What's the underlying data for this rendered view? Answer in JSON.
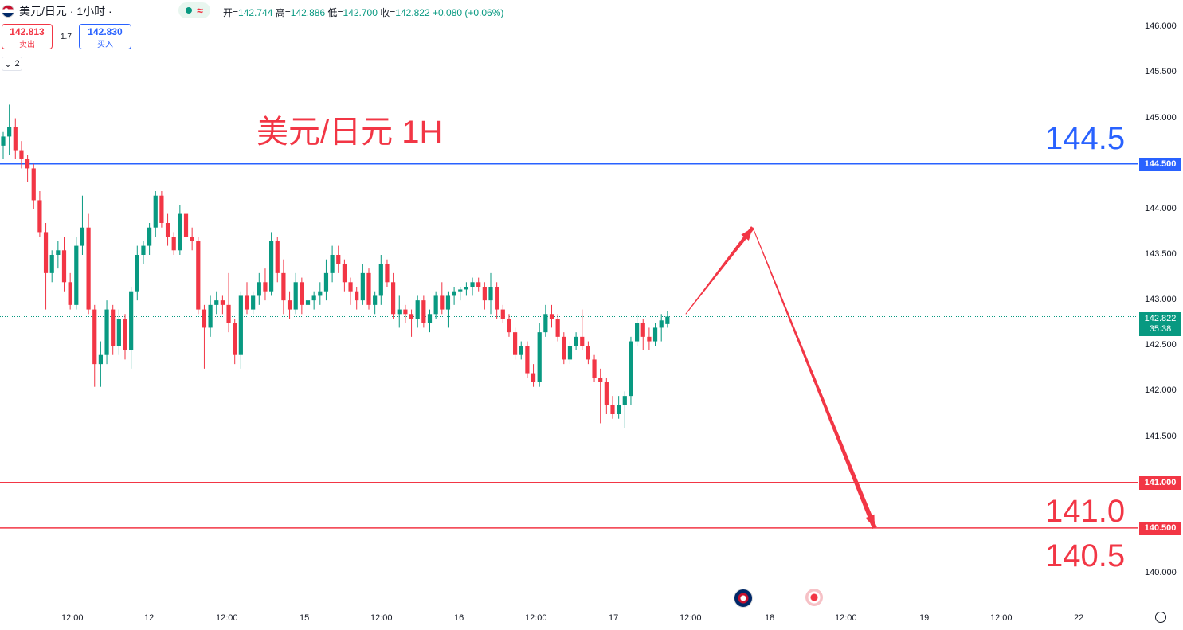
{
  "header": {
    "symbol": "美元/日元 · 1小时 ·",
    "ohlc": {
      "open_label": "开=",
      "open": "142.744",
      "high_label": "高=",
      "high": "142.886",
      "low_label": "低=",
      "low": "142.700",
      "close_label": "收=",
      "close": "142.822",
      "change": "+0.080 (+0.06%)"
    }
  },
  "trade": {
    "sell_price": "142.813",
    "sell_label": "卖出",
    "spread": "1.7",
    "buy_price": "142.830",
    "buy_label": "买入",
    "collapse_count": "2"
  },
  "annotations": {
    "title": "美元/日元 1H",
    "level_top": "144.5",
    "level_mid": "141.0",
    "level_low": "140.5"
  },
  "current_price": {
    "price": "142.822",
    "countdown": "35:38"
  },
  "colors": {
    "up": "#089981",
    "down": "#f23645",
    "blue_line": "#2962ff",
    "red_line": "#f23645"
  },
  "chart_data": {
    "type": "candlestick",
    "y_axis": {
      "range": [
        139.65,
        146.3
      ],
      "ticks": [
        "146.000",
        "145.500",
        "145.000",
        "144.500",
        "144.000",
        "143.500",
        "143.000",
        "142.500",
        "142.000",
        "141.500",
        "141.000",
        "140.500",
        "140.000"
      ]
    },
    "x_axis": {
      "ticks": [
        "12:00",
        "12",
        "12:00",
        "15",
        "12:00",
        "16",
        "12:00",
        "17",
        "12:00",
        "18",
        "12:00",
        "19",
        "12:00",
        "22"
      ]
    },
    "horizontal_levels": [
      {
        "value": 144.5,
        "label": "144.500",
        "color": "#2962ff"
      },
      {
        "value": 141.0,
        "label": "141.000",
        "color": "#f23645"
      },
      {
        "value": 140.5,
        "label": "140.500",
        "color": "#f23645"
      }
    ],
    "candles": [
      [
        144.7,
        144.85,
        144.55,
        144.8
      ],
      [
        144.8,
        145.15,
        144.6,
        144.9
      ],
      [
        144.9,
        145.0,
        144.55,
        144.65
      ],
      [
        144.65,
        144.75,
        144.45,
        144.55
      ],
      [
        144.55,
        144.6,
        144.3,
        144.45
      ],
      [
        144.45,
        144.5,
        144.0,
        144.1
      ],
      [
        144.1,
        144.2,
        143.7,
        143.75
      ],
      [
        143.75,
        143.85,
        142.9,
        143.3
      ],
      [
        143.3,
        143.55,
        143.2,
        143.5
      ],
      [
        143.5,
        143.65,
        143.35,
        143.55
      ],
      [
        143.55,
        143.7,
        143.1,
        143.2
      ],
      [
        143.2,
        143.3,
        142.9,
        142.95
      ],
      [
        142.95,
        143.7,
        142.9,
        143.6
      ],
      [
        143.6,
        144.15,
        143.5,
        143.8
      ],
      [
        143.8,
        143.95,
        142.85,
        142.9
      ],
      [
        142.9,
        142.95,
        142.05,
        142.3
      ],
      [
        142.3,
        142.55,
        142.05,
        142.4
      ],
      [
        142.4,
        143.0,
        142.3,
        142.9
      ],
      [
        142.9,
        142.95,
        142.4,
        142.5
      ],
      [
        142.5,
        142.9,
        142.4,
        142.8
      ],
      [
        142.8,
        142.85,
        142.35,
        142.45
      ],
      [
        142.45,
        143.15,
        142.25,
        143.1
      ],
      [
        143.1,
        143.6,
        143.0,
        143.5
      ],
      [
        143.5,
        143.65,
        143.4,
        143.6
      ],
      [
        143.6,
        143.85,
        143.5,
        143.8
      ],
      [
        143.8,
        144.2,
        143.7,
        144.15
      ],
      [
        144.15,
        144.2,
        143.8,
        143.85
      ],
      [
        143.85,
        143.95,
        143.6,
        143.7
      ],
      [
        143.7,
        143.75,
        143.5,
        143.55
      ],
      [
        143.55,
        144.05,
        143.5,
        143.95
      ],
      [
        143.95,
        144.0,
        143.6,
        143.7
      ],
      [
        143.7,
        143.8,
        143.55,
        143.65
      ],
      [
        143.65,
        143.7,
        142.85,
        142.9
      ],
      [
        142.9,
        142.95,
        142.25,
        142.7
      ],
      [
        142.7,
        143.05,
        142.6,
        142.95
      ],
      [
        142.95,
        143.1,
        142.85,
        143.0
      ],
      [
        143.0,
        143.05,
        142.85,
        142.95
      ],
      [
        142.95,
        143.3,
        142.65,
        142.75
      ],
      [
        142.75,
        142.8,
        142.3,
        142.4
      ],
      [
        142.4,
        143.1,
        142.25,
        143.05
      ],
      [
        143.05,
        143.2,
        142.85,
        142.9
      ],
      [
        142.9,
        143.1,
        142.85,
        143.05
      ],
      [
        143.05,
        143.3,
        142.95,
        143.2
      ],
      [
        143.2,
        143.35,
        143.0,
        143.1
      ],
      [
        143.1,
        143.75,
        143.05,
        143.65
      ],
      [
        143.65,
        143.7,
        143.2,
        143.3
      ],
      [
        143.3,
        143.45,
        142.85,
        143.0
      ],
      [
        143.0,
        143.1,
        142.8,
        142.9
      ],
      [
        142.9,
        143.3,
        142.85,
        143.2
      ],
      [
        143.2,
        143.25,
        142.85,
        142.95
      ],
      [
        142.95,
        143.05,
        142.85,
        143.0
      ],
      [
        143.0,
        143.1,
        142.9,
        143.05
      ],
      [
        143.05,
        143.2,
        142.95,
        143.1
      ],
      [
        143.1,
        143.45,
        143.0,
        143.3
      ],
      [
        143.3,
        143.6,
        143.2,
        143.5
      ],
      [
        143.5,
        143.6,
        143.3,
        143.4
      ],
      [
        143.4,
        143.45,
        143.1,
        143.2
      ],
      [
        143.2,
        143.25,
        142.95,
        143.1
      ],
      [
        143.1,
        143.15,
        142.9,
        143.0
      ],
      [
        143.0,
        143.4,
        142.95,
        143.3
      ],
      [
        143.3,
        143.35,
        142.9,
        142.95
      ],
      [
        142.95,
        143.1,
        142.85,
        143.05
      ],
      [
        143.05,
        143.5,
        142.95,
        143.4
      ],
      [
        143.4,
        143.45,
        143.15,
        143.2
      ],
      [
        143.2,
        143.3,
        142.8,
        142.85
      ],
      [
        142.85,
        143.05,
        142.7,
        142.9
      ],
      [
        142.9,
        142.95,
        142.75,
        142.85
      ],
      [
        142.85,
        142.9,
        142.6,
        142.8
      ],
      [
        142.8,
        143.05,
        142.7,
        143.0
      ],
      [
        143.0,
        143.05,
        142.7,
        142.75
      ],
      [
        142.75,
        142.9,
        142.65,
        142.85
      ],
      [
        142.85,
        143.1,
        142.8,
        143.05
      ],
      [
        143.05,
        143.2,
        142.85,
        142.9
      ],
      [
        142.9,
        143.1,
        142.7,
        143.05
      ],
      [
        143.05,
        143.15,
        142.95,
        143.1
      ],
      [
        143.1,
        143.15,
        143.0,
        143.12
      ],
      [
        143.12,
        143.2,
        143.05,
        143.15
      ],
      [
        143.15,
        143.25,
        143.05,
        143.2
      ],
      [
        143.2,
        143.25,
        143.1,
        143.15
      ],
      [
        143.15,
        143.2,
        142.9,
        143.0
      ],
      [
        143.0,
        143.3,
        142.85,
        143.15
      ],
      [
        143.15,
        143.2,
        142.8,
        142.9
      ],
      [
        142.9,
        142.95,
        142.75,
        142.8
      ],
      [
        142.8,
        142.85,
        142.6,
        142.65
      ],
      [
        142.65,
        142.7,
        142.35,
        142.4
      ],
      [
        142.4,
        142.55,
        142.35,
        142.5
      ],
      [
        142.5,
        142.55,
        142.15,
        142.2
      ],
      [
        142.2,
        142.3,
        142.05,
        142.1
      ],
      [
        142.1,
        142.75,
        142.05,
        142.65
      ],
      [
        142.65,
        142.95,
        142.6,
        142.85
      ],
      [
        142.85,
        142.95,
        142.7,
        142.8
      ],
      [
        142.8,
        142.85,
        142.55,
        142.6
      ],
      [
        142.6,
        142.65,
        142.3,
        142.35
      ],
      [
        142.35,
        142.55,
        142.3,
        142.5
      ],
      [
        142.5,
        142.65,
        142.45,
        142.6
      ],
      [
        142.6,
        142.9,
        142.45,
        142.5
      ],
      [
        142.5,
        142.55,
        142.3,
        142.35
      ],
      [
        142.35,
        142.4,
        142.1,
        142.15
      ],
      [
        142.15,
        142.25,
        141.65,
        142.1
      ],
      [
        142.1,
        142.15,
        141.75,
        141.85
      ],
      [
        141.85,
        141.95,
        141.7,
        141.75
      ],
      [
        141.75,
        141.95,
        141.7,
        141.85
      ],
      [
        141.85,
        142.0,
        141.6,
        141.95
      ],
      [
        141.95,
        142.6,
        141.85,
        142.55
      ],
      [
        142.55,
        142.85,
        142.5,
        142.75
      ],
      [
        142.75,
        142.8,
        142.45,
        142.6
      ],
      [
        142.6,
        142.7,
        142.45,
        142.55
      ],
      [
        142.55,
        142.75,
        142.5,
        142.7
      ],
      [
        142.7,
        142.85,
        142.55,
        142.78
      ],
      [
        142.74,
        142.886,
        142.7,
        142.822
      ]
    ],
    "projection": [
      {
        "bar": 112,
        "value": 142.85
      },
      {
        "bar": 123,
        "value": 143.8
      },
      {
        "bar": 143,
        "value": 140.5
      }
    ]
  }
}
